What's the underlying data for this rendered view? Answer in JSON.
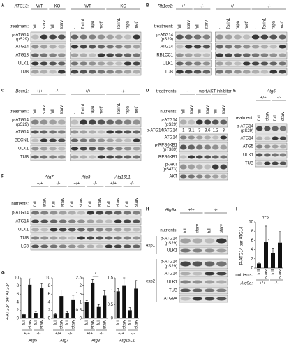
{
  "panels": [
    {
      "label": "A",
      "group_label": "ATG13:",
      "groups": [
        "WT",
        "KO",
        "WT",
        "KO"
      ],
      "lane_label": "treatment:",
      "lanes": [
        "full",
        "starv",
        "full",
        "starv",
        "-",
        "Torin1",
        "rapa",
        "metf",
        "-",
        "Torin1",
        "rapa",
        "metf"
      ],
      "rows": [
        {
          "name": "p-ATG14",
          "sub": "(pS29)"
        },
        {
          "name": "ATG14"
        },
        {
          "name": "ATG13"
        },
        {
          "name": "ULK1"
        },
        {
          "name": "TUB"
        }
      ]
    },
    {
      "label": "B",
      "group_label": "Rb1cc1:",
      "groups": [
        "+/+",
        "-/-",
        "+/+",
        "-/-"
      ],
      "lane_label": "treatment:",
      "lanes": [
        "full",
        "starv",
        "full",
        "starv",
        "-",
        "Torin1",
        "rapa",
        "metf",
        "-",
        "Torin1",
        "rapa",
        "metf"
      ],
      "rows": [
        {
          "name": "p-ATG14",
          "sub": "(pS29)"
        },
        {
          "name": "ATG14"
        },
        {
          "name": "RB1CC1"
        },
        {
          "name": "ULK1"
        },
        {
          "name": "TUB"
        }
      ]
    },
    {
      "label": "C",
      "group_label": "Becn1:",
      "groups": [
        "+/+",
        "-/-",
        "+/+",
        "-/-"
      ],
      "lane_label": "treatment:",
      "lanes": [
        "full",
        "starv",
        "full",
        "starv",
        "-",
        "Torin1",
        "rapa",
        "metf",
        "-",
        "Torin1",
        "rapa",
        "metf"
      ],
      "rows": [
        {
          "name": "p-ATG14",
          "sub": "(pS29)"
        },
        {
          "name": "ATG14"
        },
        {
          "name": "BECN1"
        },
        {
          "name": "ULK1"
        },
        {
          "name": "TUB"
        }
      ]
    },
    {
      "label": "D",
      "group_label": "treatments:",
      "groups": [
        "-",
        "wort.",
        "AKT inhibitor"
      ],
      "lane_label": "nutrients:",
      "lanes": [
        "full",
        "starv",
        "full",
        "starv",
        "full",
        "starv"
      ],
      "rows": [
        {
          "name": "p-ATG14",
          "sub": "(pS29)"
        },
        {
          "name": "ATG14"
        },
        {
          "name": "p-RPS6KB1",
          "sub": "(pT389)"
        },
        {
          "name": "RPS6KB1"
        },
        {
          "name": "p-AKT",
          "sub": "(pS473)"
        },
        {
          "name": "AKT"
        }
      ],
      "ratio": {
        "label": "p-ATG14/ATG14",
        "values": [
          1,
          3.1,
          3,
          3.6,
          1.2,
          3
        ]
      }
    },
    {
      "label": "E",
      "genes": [
        "Atg5"
      ],
      "groups": [
        "+/+",
        "-/-"
      ],
      "lane_label": "treatment:",
      "lanes": [
        "full",
        "starv",
        "full",
        "starv"
      ],
      "rows": [
        {
          "name": "p-ATG14",
          "sub": "(pS29)"
        },
        {
          "name": "ATG14"
        },
        {
          "name": "ATG5"
        },
        {
          "name": "ULK1"
        },
        {
          "name": "TUB"
        }
      ]
    },
    {
      "label": "F",
      "genes": [
        "Atg7",
        "Atg3",
        "Atg16L1"
      ],
      "groups": [
        "+/+",
        "-/-",
        "+/+",
        "-/-",
        "+/+",
        "-/-"
      ],
      "lane_label": "nutrients:",
      "lanes": [
        "full",
        "starv",
        "full",
        "starv",
        "full",
        "starv",
        "full",
        "starv",
        "full",
        "starv",
        "full",
        "starv"
      ],
      "rows": [
        {
          "name": "p-ATG14"
        },
        {
          "name": "ATG14"
        },
        {
          "name": "ULK1"
        },
        {
          "name": "TUB"
        },
        {
          "name": "LC3"
        }
      ]
    },
    {
      "label": "H",
      "group_label": "Atg9a:",
      "groups": [
        "+/+",
        "-/-"
      ],
      "lane_label": "nutrients:",
      "lanes": [
        "full",
        "starv",
        "full",
        "starv"
      ],
      "sections": [
        {
          "name": "exp1",
          "rows": [
            {
              "name": "p-ATG14",
              "sub": "(pS29)"
            },
            {
              "name": "ULK1"
            }
          ]
        },
        {
          "name": "exp2",
          "rows": [
            {
              "name": "p-ATG14",
              "sub": "(pS29)"
            },
            {
              "name": "ATG14"
            },
            {
              "name": "ULK1"
            },
            {
              "name": "TUB"
            },
            {
              "name": "ATG9A"
            }
          ]
        }
      ]
    }
  ],
  "chart_g": {
    "label": "G",
    "y_label": "P-ATG14 per ATG14",
    "lanes": [
      "full",
      "starv",
      "full",
      "starv"
    ],
    "groups": [
      "+/+",
      "-/-"
    ],
    "plots": [
      {
        "title": "Atg5",
        "ylim": [
          0,
          10
        ],
        "yticks": [
          0,
          2,
          4,
          6,
          8,
          10
        ],
        "values": [
          1,
          8.3,
          1.2,
          7.4
        ],
        "errors": [
          0.3,
          1.5,
          0.5,
          1.2
        ]
      },
      {
        "title": "Atg7",
        "ylim": [
          0,
          10
        ],
        "yticks": [
          0,
          2,
          4,
          6,
          8,
          10
        ],
        "values": [
          1,
          5.5,
          1.3,
          4.5
        ],
        "errors": [
          0.2,
          1.5,
          0.4,
          1.2
        ]
      },
      {
        "title": "Atg3",
        "ylim": [
          0,
          2.5
        ],
        "yticks": [
          0,
          0.5,
          1,
          1.5,
          2,
          2.5
        ],
        "values": [
          1,
          2.2,
          0.7,
          1.4
        ],
        "errors": [
          0.1,
          0.2,
          0.15,
          0.3
        ],
        "annotation": "*"
      },
      {
        "title": "Atg16L1",
        "ylim": [
          0,
          1.5
        ],
        "yticks": [
          0,
          0.5,
          1,
          1.5
        ],
        "values": [
          1,
          1.2,
          0.3,
          1.1
        ],
        "errors": [
          0.1,
          0.3,
          0.1,
          0.3
        ]
      }
    ]
  },
  "chart_i": {
    "label": "I",
    "y_label": "P-ATG14 per ATG14",
    "annotation": "n=5",
    "star": "*",
    "lane_label": "nutrients:",
    "group_label": "Atg9a:",
    "lanes": [
      "full",
      "starv",
      "full",
      "starv"
    ],
    "groups": [
      "+/+",
      "-/-"
    ],
    "ylim": [
      0,
      10
    ],
    "yticks": [
      0,
      2,
      4,
      6,
      8,
      10
    ],
    "values": [
      1,
      5.6,
      3.2,
      5.5
    ],
    "errors": [
      0.3,
      3.5,
      1,
      2.4
    ]
  }
}
